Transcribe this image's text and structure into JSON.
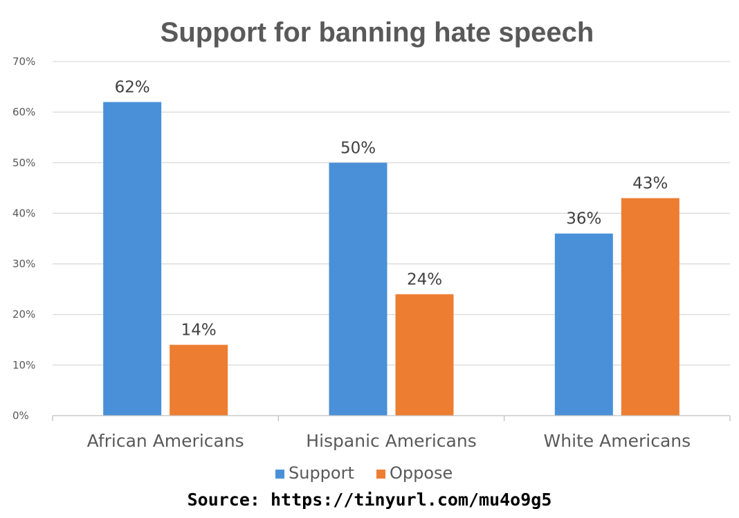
{
  "chart_data": {
    "type": "bar",
    "title": "Support for banning hate speech",
    "xlabel": "",
    "ylabel": "",
    "ylim": [
      0,
      70
    ],
    "y_ticks": [
      0,
      10,
      20,
      30,
      40,
      50,
      60,
      70
    ],
    "y_tick_labels": [
      "0%",
      "10%",
      "20%",
      "30%",
      "40%",
      "50%",
      "60%",
      "70%"
    ],
    "categories": [
      "African Americans",
      "Hispanic Americans",
      "White Americans"
    ],
    "series": [
      {
        "name": "Support",
        "color": "#4a90d9",
        "values": [
          62,
          50,
          36
        ],
        "labels": [
          "62%",
          "50%",
          "36%"
        ]
      },
      {
        "name": "Oppose",
        "color": "#ed7d31",
        "values": [
          14,
          24,
          43
        ],
        "labels": [
          "14%",
          "24%",
          "43%"
        ]
      }
    ],
    "grid": true,
    "legend_position": "bottom"
  },
  "source_text": "Source: https://tinyurl.com/mu4o9g5"
}
